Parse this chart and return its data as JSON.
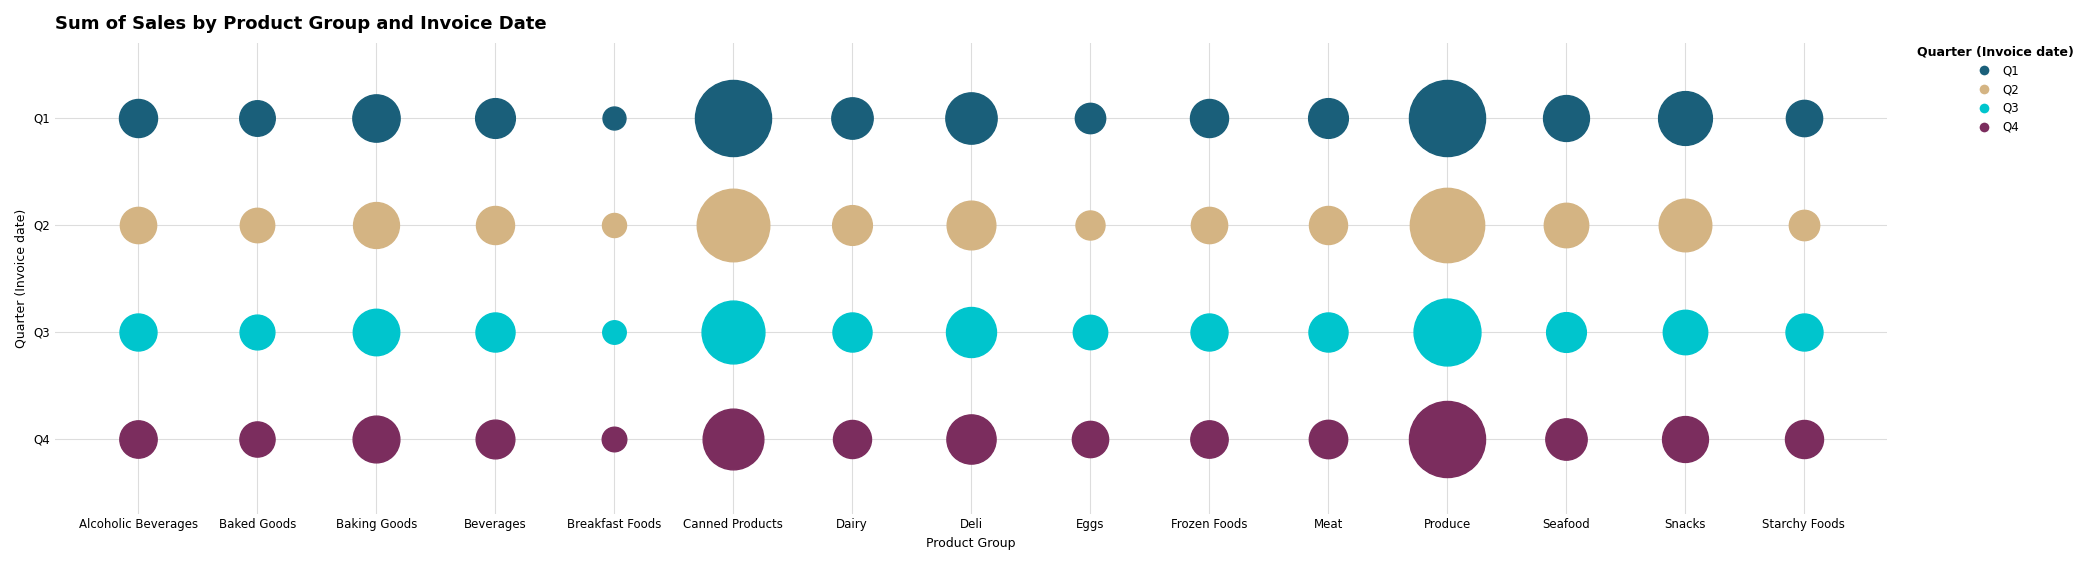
{
  "title": "Sum of Sales by Product Group and Invoice Date",
  "xlabel": "Product Group",
  "ylabel": "Quarter (Invoice date)",
  "quarters": [
    "Q1",
    "Q2",
    "Q3",
    "Q4"
  ],
  "product_groups": [
    "Alcoholic Beverages",
    "Baked Goods",
    "Baking Goods",
    "Beverages",
    "Breakfast Foods",
    "Canned Products",
    "Dairy",
    "Deli",
    "Eggs",
    "Frozen Foods",
    "Meat",
    "Produce",
    "Seafood",
    "Snacks",
    "Starchy Foods"
  ],
  "colors": {
    "Q1": "#1a5f7a",
    "Q2": "#d4b483",
    "Q3": "#00c5cd",
    "Q4": "#7b2d5e"
  },
  "sales": {
    "Q1": [
      5500,
      4800,
      8500,
      6000,
      2000,
      22000,
      6500,
      10000,
      3500,
      5500,
      6000,
      22000,
      8000,
      11000,
      5000
    ],
    "Q2": [
      5000,
      4500,
      8000,
      5500,
      2200,
      20000,
      6000,
      9000,
      3200,
      5000,
      5500,
      21000,
      7500,
      10500,
      3500
    ],
    "Q3": [
      5200,
      4600,
      8200,
      5800,
      2100,
      15000,
      5800,
      9500,
      4500,
      5200,
      5800,
      17000,
      6000,
      7500,
      5200
    ],
    "Q4": [
      5300,
      4700,
      8300,
      5700,
      2300,
      14000,
      5500,
      9200,
      5000,
      5300,
      5600,
      22000,
      6500,
      8000,
      5500
    ]
  },
  "background_color": "#ffffff",
  "grid_color": "#dddddd",
  "title_fontsize": 13,
  "label_fontsize": 9,
  "tick_fontsize": 8.5,
  "size_scale": 3000.0,
  "fig_width": 20.93,
  "fig_height": 5.65
}
